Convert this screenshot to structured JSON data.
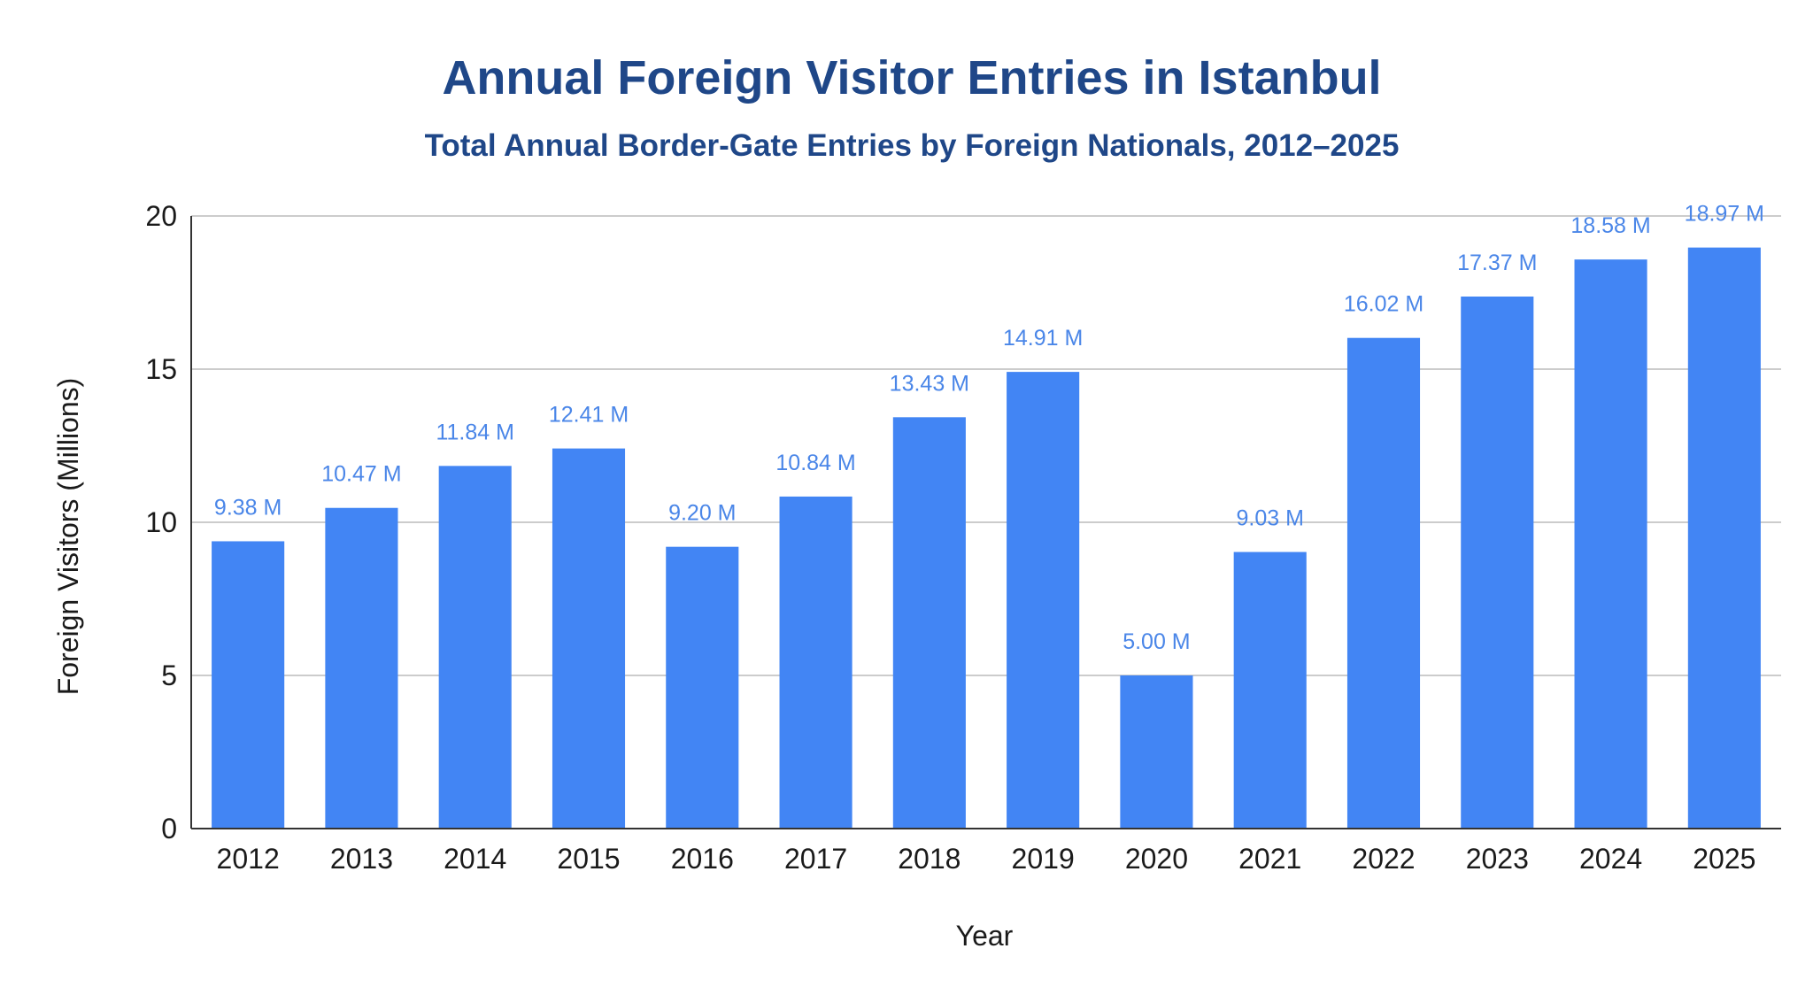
{
  "chart_data": {
    "type": "bar",
    "title": "Annual Foreign Visitor Entries in Istanbul",
    "subtitle": "Total Annual Border-Gate Entries by Foreign Nationals, 2012–2025",
    "xlabel": "Year",
    "ylabel": "Foreign Visitors (Millions)",
    "ylim": [
      0,
      20
    ],
    "yticks": [
      0,
      5,
      10,
      15,
      20
    ],
    "grid": true,
    "legend": "none",
    "categories": [
      "2012",
      "2013",
      "2014",
      "2015",
      "2016",
      "2017",
      "2018",
      "2019",
      "2020",
      "2021",
      "2022",
      "2023",
      "2024",
      "2025"
    ],
    "values": [
      9.38,
      10.47,
      11.84,
      12.41,
      9.2,
      10.84,
      13.43,
      14.91,
      5.0,
      9.03,
      16.02,
      17.37,
      18.58,
      18.97
    ],
    "data_labels": [
      "9.38 M",
      "10.47 M",
      "11.84 M",
      "12.41 M",
      "9.20 M",
      "10.84 M",
      "13.43 M",
      "14.91 M",
      "5.00 M",
      "9.03 M",
      "16.02 M",
      "17.37 M",
      "18.58 M",
      "18.97 M"
    ],
    "colors": {
      "bar": "#4285f4",
      "data_label": "#4a86e8",
      "title": "#1f4788"
    }
  }
}
